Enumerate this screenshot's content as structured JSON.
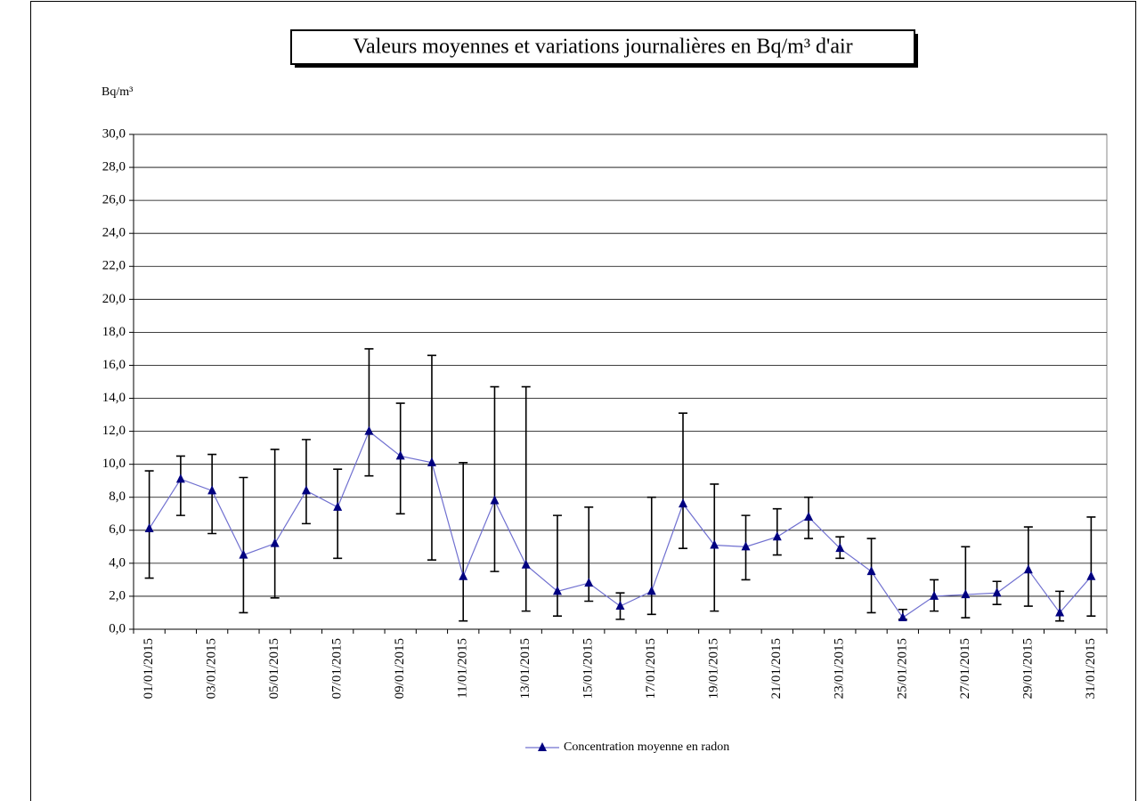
{
  "chart_data": {
    "type": "line",
    "title": "Valeurs moyennes et variations journalières en Bq/m³ d'air",
    "y_label": "Bq/m³",
    "categories": [
      "01/01/2015",
      null,
      "03/01/2015",
      null,
      "05/01/2015",
      null,
      "07/01/2015",
      null,
      "09/01/2015",
      null,
      "11/01/2015",
      null,
      "13/01/2015",
      null,
      "15/01/2015",
      null,
      "17/01/2015",
      null,
      "19/01/2015",
      null,
      "21/01/2015",
      null,
      "23/01/2015",
      null,
      "25/01/2015",
      null,
      "27/01/2015",
      null,
      "29/01/2015",
      null,
      "31/01/2015"
    ],
    "series": [
      {
        "name": "Concentration moyenne en radon",
        "color": "#7070d0",
        "marker_color": "#000080",
        "values": [
          6.1,
          9.1,
          8.4,
          4.5,
          5.2,
          8.4,
          7.4,
          12.0,
          10.5,
          10.1,
          3.2,
          7.8,
          3.9,
          2.3,
          2.8,
          1.4,
          2.3,
          7.6,
          5.1,
          5.0,
          5.6,
          6.8,
          4.9,
          3.5,
          0.7,
          2.0,
          2.1,
          2.2,
          3.6,
          1.0,
          3.2
        ],
        "lows": [
          3.1,
          6.9,
          5.8,
          1.0,
          1.9,
          6.4,
          4.3,
          9.3,
          7.0,
          4.2,
          0.5,
          3.5,
          1.1,
          0.8,
          1.7,
          0.6,
          0.9,
          4.9,
          1.1,
          3.0,
          4.5,
          5.5,
          4.3,
          1.0,
          0.6,
          1.1,
          0.7,
          1.5,
          1.4,
          0.5,
          0.8
        ],
        "highs": [
          9.6,
          10.5,
          10.6,
          9.2,
          10.9,
          11.5,
          9.7,
          17.0,
          13.7,
          16.6,
          10.1,
          14.7,
          14.7,
          6.9,
          7.4,
          2.2,
          8.0,
          13.1,
          8.8,
          6.9,
          7.3,
          8.0,
          5.6,
          5.5,
          1.2,
          3.0,
          5.0,
          2.9,
          6.2,
          2.3,
          6.8
        ]
      }
    ],
    "ylim": [
      0,
      30
    ],
    "yticks": [
      {
        "value": 0,
        "label": "0,0"
      },
      {
        "value": 2,
        "label": "2,0"
      },
      {
        "value": 4,
        "label": "4,0"
      },
      {
        "value": 6,
        "label": "6,0"
      },
      {
        "value": 8,
        "label": "8,0"
      },
      {
        "value": 10,
        "label": "10,0"
      },
      {
        "value": 12,
        "label": "12,0"
      },
      {
        "value": 14,
        "label": "14,0"
      },
      {
        "value": 16,
        "label": "16,0"
      },
      {
        "value": 18,
        "label": "18,0"
      },
      {
        "value": 20,
        "label": "20,0"
      },
      {
        "value": 22,
        "label": "22,0"
      },
      {
        "value": 24,
        "label": "24,0"
      },
      {
        "value": 26,
        "label": "26,0"
      },
      {
        "value": 28,
        "label": "28,0"
      },
      {
        "value": 30,
        "label": "30,0"
      }
    ],
    "grid": true,
    "legend": "bottom"
  }
}
